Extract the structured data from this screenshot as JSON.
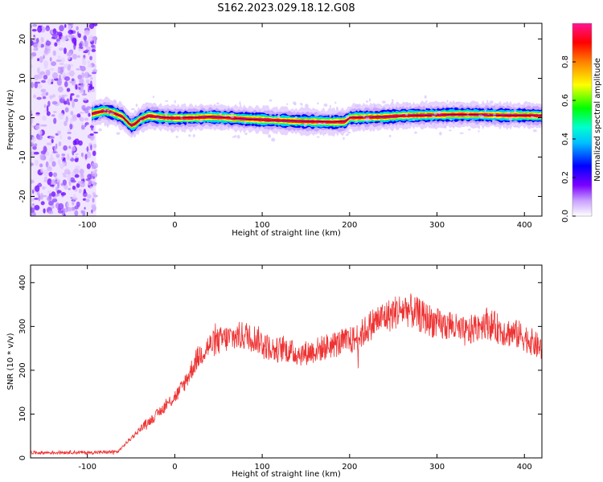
{
  "figure": {
    "title": "S162.2023.029.18.12.G08"
  },
  "chart_data": [
    {
      "type": "heatmap",
      "xlabel": "Height of straight line (km)",
      "ylabel": "Frequency (Hz)",
      "xlim": [
        -165,
        420
      ],
      "ylim": [
        -25,
        24
      ],
      "x_ticks": [
        -100,
        0,
        100,
        200,
        300,
        400
      ],
      "y_ticks": [
        -20,
        -10,
        0,
        10,
        20
      ],
      "colorbar": {
        "label": "Normalized spectral amplitude",
        "ticks": [
          0.0,
          0.2,
          0.4,
          0.6,
          0.8
        ],
        "range": [
          0,
          1
        ],
        "colormap": [
          "#ffffff",
          "#a020f0",
          "#0000ff",
          "#00ffff",
          "#00ff00",
          "#ffff00",
          "#ff8000",
          "#ff0000",
          "#ff1493"
        ]
      },
      "ridge": {
        "x": [
          -95,
          -80,
          -70,
          -60,
          -50,
          -45,
          -40,
          -30,
          -20,
          -10,
          0,
          20,
          40,
          60,
          80,
          100,
          120,
          140,
          160,
          180,
          195,
          200,
          220,
          240,
          260,
          280,
          300,
          320,
          340,
          360,
          380,
          400,
          420
        ],
        "y": [
          1.0,
          1.8,
          1.2,
          0.3,
          -2.0,
          -1.5,
          -0.5,
          0.5,
          0.2,
          0.0,
          -0.1,
          0.0,
          0.2,
          0.0,
          -0.3,
          -0.5,
          -0.7,
          -0.9,
          -1.0,
          -1.1,
          -1.0,
          0.0,
          0.1,
          0.2,
          0.5,
          0.6,
          0.7,
          0.8,
          0.8,
          0.7,
          0.6,
          0.6,
          0.5
        ]
      },
      "noise_region_x": [
        -165,
        -90
      ],
      "grid": false
    },
    {
      "type": "line",
      "xlabel": "Height of straight line (km)",
      "ylabel": "SNR (10 * v/v)",
      "xlim": [
        -165,
        420
      ],
      "ylim": [
        0,
        440
      ],
      "x_ticks": [
        -100,
        0,
        100,
        200,
        300,
        400
      ],
      "y_ticks": [
        0,
        100,
        200,
        300,
        400
      ],
      "color": "#ee3333",
      "series": [
        {
          "x": [
            -165,
            -140,
            -120,
            -100,
            -80,
            -65,
            -55,
            -45,
            -35,
            -25,
            -15,
            -5,
            5,
            15,
            25,
            35,
            45,
            55,
            65,
            75,
            85,
            95,
            105,
            115,
            125,
            135,
            145,
            155,
            165,
            175,
            185,
            195,
            205,
            215,
            225,
            235,
            245,
            255,
            265,
            275,
            285,
            295,
            305,
            315,
            325,
            335,
            345,
            355,
            365,
            375,
            385,
            395,
            405,
            415,
            420
          ],
          "values": [
            12,
            12,
            13,
            12,
            13,
            14,
            35,
            55,
            75,
            90,
            110,
            130,
            150,
            185,
            225,
            250,
            262,
            270,
            275,
            278,
            280,
            270,
            255,
            245,
            250,
            240,
            238,
            242,
            248,
            255,
            260,
            265,
            270,
            285,
            305,
            318,
            325,
            335,
            340,
            330,
            320,
            312,
            300,
            305,
            290,
            285,
            300,
            310,
            300,
            290,
            285,
            280,
            270,
            255,
            250
          ]
        }
      ],
      "grid": false
    }
  ]
}
